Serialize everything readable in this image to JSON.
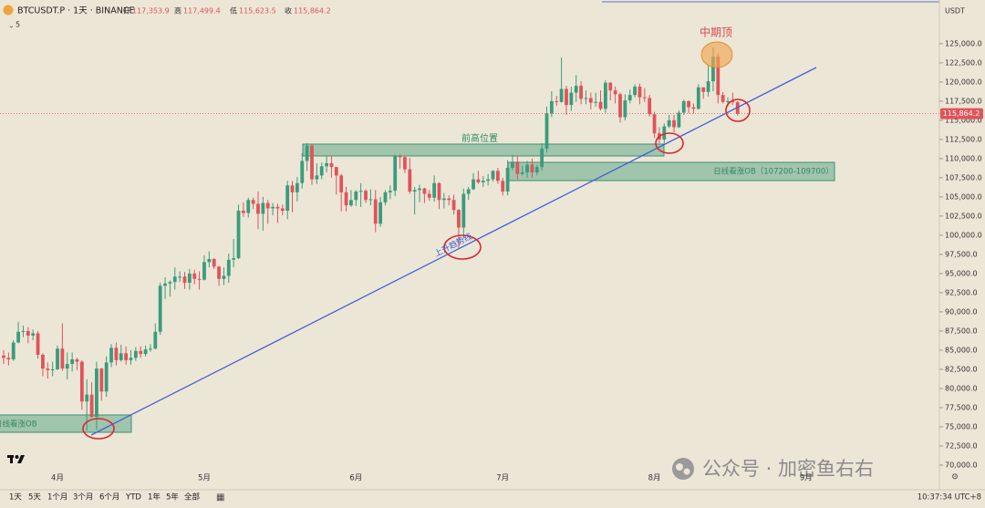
{
  "chart_data": {
    "type": "candlestick",
    "symbol": "BTCUSDT.P · 1天 · BINANCE",
    "indicator_count": 5,
    "currency": "USDT",
    "up_color": "#3a9c7b",
    "down_color": "#e0535a",
    "last_values": [
      {
        "value": 117353.9,
        "label": "117,353.9"
      },
      {
        "value": 117499.4,
        "label": "117,499.4"
      },
      {
        "value": 115623.5,
        "label": "115,623.5"
      },
      {
        "value": 115864.2,
        "label": "115,864.2"
      }
    ],
    "last_price": {
      "value": 115864.2,
      "label": "115,864.2"
    },
    "annotations": [
      "中期顶",
      "前高位置",
      "上升趋势线",
      "日线看涨OB（107200-109700）",
      "日线看涨OB"
    ],
    "ylim": [
      69400,
      130700
    ],
    "yticks": [
      {
        "value": 70000,
        "label": "70,000.0"
      },
      {
        "value": 72500,
        "label": "72,500.0"
      },
      {
        "value": 75000,
        "label": "75,000.0"
      },
      {
        "value": 77500,
        "label": "77,500.0"
      },
      {
        "value": 80000,
        "label": "80,000.0"
      },
      {
        "value": 82500,
        "label": "82,500.0"
      },
      {
        "value": 85000,
        "label": "85,000.0"
      },
      {
        "value": 87500,
        "label": "87,500.0"
      },
      {
        "value": 90000,
        "label": "90,000.0"
      },
      {
        "value": 92500,
        "label": "92,500.0"
      },
      {
        "value": 95000,
        "label": "95,000.0"
      },
      {
        "value": 97500,
        "label": "97,500.0"
      },
      {
        "value": 100000,
        "label": "100,000.0"
      },
      {
        "value": 102500,
        "label": "102,500.0"
      },
      {
        "value": 105000,
        "label": "105,000.0"
      },
      {
        "value": 107500,
        "label": "107,500.0"
      },
      {
        "value": 110000,
        "label": "110,000.0"
      },
      {
        "value": 112500,
        "label": "112,500.0"
      },
      {
        "value": 115000,
        "label": "115,000.0"
      },
      {
        "value": 117500,
        "label": "117,500.0"
      },
      {
        "value": 120000,
        "label": "120,000.0"
      },
      {
        "value": 122500,
        "label": "122,500.0"
      },
      {
        "value": 125000,
        "label": "125,000.0"
      }
    ],
    "grid": false,
    "categories": [
      null,
      null,
      null,
      null,
      null,
      null,
      null,
      null,
      null,
      null,
      null,
      "4月",
      null,
      null,
      null,
      null,
      null,
      null,
      null,
      null,
      null,
      null,
      null,
      null,
      null,
      null,
      null,
      null,
      null,
      null,
      null,
      null,
      null,
      null,
      null,
      null,
      null,
      null,
      null,
      null,
      null,
      "5月",
      null,
      null,
      null,
      null,
      null,
      null,
      null,
      null,
      null,
      null,
      null,
      null,
      null,
      null,
      null,
      null,
      null,
      null,
      null,
      null,
      null,
      null,
      null,
      null,
      null,
      null,
      null,
      null,
      null,
      null,
      "6月",
      null,
      null,
      null,
      null,
      null,
      null,
      null,
      null,
      null,
      null,
      null,
      null,
      null,
      null,
      null,
      null,
      null,
      null,
      null,
      null,
      null,
      null,
      null,
      null,
      null,
      null,
      null,
      null,
      null,
      "7月",
      null,
      null,
      null,
      null,
      null,
      null,
      null,
      null,
      null,
      null,
      null,
      null,
      null,
      null,
      null,
      null,
      null,
      null,
      null,
      null,
      null,
      null,
      null,
      null,
      null,
      null,
      null,
      null,
      null,
      null,
      "8月",
      null,
      null,
      null,
      null,
      null,
      null,
      null,
      null,
      null,
      null,
      null,
      null,
      null,
      null,
      null,
      null,
      null,
      null,
      null,
      null,
      null,
      null,
      null,
      null,
      null,
      null,
      null,
      null,
      null,
      null,
      "9月"
    ],
    "series": [
      {
        "name": "开",
        "values": [
          84300,
          84000,
          83800,
          86000,
          87400,
          87500,
          86900,
          87200,
          84400,
          82600,
          82400,
          82500,
          85200,
          82600,
          83200,
          83800,
          83500,
          78300,
          79200,
          76300,
          82600,
          79600,
          83400,
          85300,
          83700,
          84600,
          83700,
          84000,
          84900,
          84500,
          85100,
          85200,
          87400,
          93400,
          93700,
          93900,
          94600,
          94600,
          93800,
          95000,
          94300,
          94200,
          96500,
          96900,
          95900,
          94300,
          94700,
          96800,
          97000,
          103200,
          102900,
          104600,
          104100,
          102800,
          104200,
          103500,
          103700,
          103500,
          103200,
          106500,
          105600,
          106800,
          109700,
          111700,
          107300,
          107800,
          109000,
          109400,
          108900,
          107800,
          105600,
          103900,
          104600,
          105700,
          105800,
          104600,
          104700,
          101500,
          104300,
          105600,
          105800,
          110300,
          110200,
          108600,
          105700,
          105900,
          106100,
          105400,
          104900,
          106800,
          104600,
          104800,
          104600,
          103300,
          101000,
          105400,
          106000,
          107300,
          106900,
          107100,
          107300,
          108400,
          107100,
          105700,
          108800,
          109600,
          108000,
          108200,
          109200,
          108200,
          108900,
          111300,
          115900,
          117500,
          117400,
          119100,
          117000,
          118600,
          119500,
          117800,
          117900,
          117300,
          117400,
          116500,
          119900,
          118900,
          118400,
          115400,
          117600,
          118300,
          119400,
          118000,
          117900,
          115800,
          113300,
          112500,
          114200,
          115000,
          114100,
          116000,
          117500,
          116700,
          116500,
          119300,
          118700,
          120100,
          123300,
          118300,
          117400,
          117500,
          117353.9,
          null,
          null,
          null,
          null,
          null,
          null,
          null,
          null,
          null,
          null,
          null,
          null,
          null,
          null
        ]
      },
      {
        "name": "高",
        "values": [
          85000,
          84700,
          86300,
          88700,
          88200,
          88000,
          87700,
          87500,
          84600,
          83400,
          83500,
          85600,
          88500,
          84700,
          84700,
          84000,
          83700,
          81200,
          80800,
          83500,
          82700,
          84200,
          85800,
          86000,
          85700,
          85500,
          85000,
          85400,
          85500,
          85600,
          85800,
          88500,
          93800,
          94500,
          94100,
          95800,
          95300,
          95200,
          95600,
          95500,
          95300,
          97400,
          97900,
          97000,
          96000,
          95800,
          97600,
          99500,
          104000,
          104300,
          104900,
          104900,
          105700,
          105000,
          104600,
          104200,
          104100,
          104000,
          107100,
          107100,
          107600,
          110700,
          112000,
          111900,
          109400,
          109500,
          110400,
          110300,
          108900,
          108000,
          106300,
          105900,
          105900,
          106800,
          106000,
          106000,
          105900,
          105000,
          105900,
          106500,
          110500,
          110600,
          110400,
          110100,
          106300,
          106600,
          106200,
          105900,
          107800,
          106900,
          105500,
          105200,
          105300,
          103400,
          106100,
          106300,
          108100,
          108400,
          107700,
          108000,
          108500,
          108800,
          107500,
          109800,
          110500,
          110400,
          109100,
          109700,
          110000,
          109200,
          112000,
          116800,
          118800,
          118200,
          123200,
          119500,
          119400,
          120900,
          120100,
          118900,
          118600,
          118600,
          118900,
          120200,
          120000,
          119400,
          118600,
          118400,
          119000,
          119700,
          119800,
          119200,
          118300,
          116100,
          114100,
          114600,
          115700,
          115700,
          116300,
          117700,
          117600,
          117200,
          119700,
          119300,
          122300,
          124500,
          123700,
          118700,
          118000,
          118600,
          117499.4,
          null,
          null,
          null,
          null,
          null,
          null,
          null,
          null,
          null,
          null,
          null,
          null,
          null,
          null
        ]
      },
      {
        "name": "低",
        "values": [
          83200,
          83000,
          83600,
          85900,
          86700,
          85900,
          86300,
          83900,
          81600,
          81300,
          81600,
          82400,
          82300,
          81200,
          82200,
          82400,
          77200,
          74500,
          76200,
          74600,
          78400,
          78900,
          82800,
          83000,
          83500,
          83100,
          83100,
          83600,
          84000,
          84200,
          84800,
          85100,
          87000,
          91700,
          92000,
          92900,
          93900,
          93000,
          92900,
          93600,
          92900,
          94100,
          95800,
          95600,
          93400,
          93500,
          93800,
          95800,
          96900,
          102400,
          102300,
          103400,
          100800,
          100600,
          101500,
          102600,
          101600,
          102600,
          102100,
          103000,
          104400,
          106100,
          108400,
          106600,
          106700,
          107300,
          108200,
          107500,
          105300,
          103100,
          103100,
          103700,
          103800,
          103700,
          104200,
          103900,
          100400,
          101100,
          103900,
          104700,
          105100,
          108700,
          108100,
          105400,
          102700,
          104300,
          104200,
          104500,
          104400,
          103400,
          103500,
          103900,
          102700,
          98200,
          99600,
          104600,
          105900,
          106700,
          106300,
          106500,
          107000,
          106700,
          105200,
          105200,
          108500,
          107300,
          107800,
          107500,
          107500,
          107800,
          108400,
          110800,
          115400,
          116900,
          117300,
          115700,
          116200,
          117400,
          117100,
          117100,
          116400,
          116800,
          116300,
          116000,
          117600,
          117200,
          114700,
          115000,
          117200,
          118000,
          117100,
          117400,
          115500,
          112700,
          112000,
          112000,
          114000,
          113400,
          114000,
          115700,
          115900,
          115900,
          116400,
          117800,
          118100,
          118800,
          117200,
          117200,
          116800,
          117000,
          115623.5,
          null,
          null,
          null,
          null,
          null,
          null,
          null,
          null,
          null,
          null,
          null,
          null,
          null,
          null
        ]
      },
      {
        "name": "收",
        "values": [
          84000,
          83800,
          86000,
          87400,
          87500,
          86900,
          87200,
          84400,
          82600,
          82400,
          82500,
          85200,
          82600,
          83200,
          83800,
          83500,
          78300,
          79200,
          76300,
          82600,
          79600,
          83400,
          85300,
          83700,
          84600,
          83700,
          84000,
          84900,
          84500,
          85100,
          85200,
          87400,
          93400,
          93700,
          93900,
          94600,
          94600,
          93800,
          95000,
          94300,
          94200,
          96500,
          96900,
          95900,
          94300,
          94700,
          96800,
          97000,
          103200,
          102900,
          104600,
          104100,
          102800,
          104200,
          103500,
          103700,
          103500,
          103200,
          106500,
          105600,
          106800,
          109700,
          111700,
          107300,
          107800,
          109000,
          109400,
          108900,
          107800,
          105600,
          103900,
          104600,
          105700,
          105800,
          104600,
          104700,
          101500,
          104300,
          105600,
          105800,
          110300,
          110200,
          108600,
          105700,
          105900,
          106100,
          105400,
          104900,
          106800,
          104600,
          104800,
          104600,
          103300,
          101000,
          105400,
          106000,
          107300,
          106900,
          107100,
          107300,
          108400,
          107100,
          105700,
          108800,
          109600,
          108000,
          108200,
          109200,
          108200,
          108900,
          111300,
          115900,
          117500,
          117400,
          119100,
          117000,
          118600,
          119500,
          117800,
          117900,
          117300,
          117400,
          116500,
          119900,
          118900,
          118400,
          115400,
          117600,
          118300,
          119400,
          118000,
          117900,
          115800,
          113300,
          112500,
          114200,
          115000,
          114100,
          116000,
          117500,
          116700,
          116500,
          119300,
          118700,
          120100,
          123300,
          118300,
          117400,
          117500,
          117400,
          115864.2,
          null,
          null,
          null,
          null,
          null,
          null,
          null,
          null,
          null,
          null,
          null,
          null,
          null,
          null
        ]
      }
    ]
  },
  "toolbar": {
    "ranges": [
      "1天",
      "5天",
      "1个月",
      "3个月",
      "6个月",
      "YTD",
      "1年",
      "5年",
      "全部"
    ],
    "time": "10:37:34 UTC+8"
  },
  "watermark": "公众号 · 加密鱼右右"
}
